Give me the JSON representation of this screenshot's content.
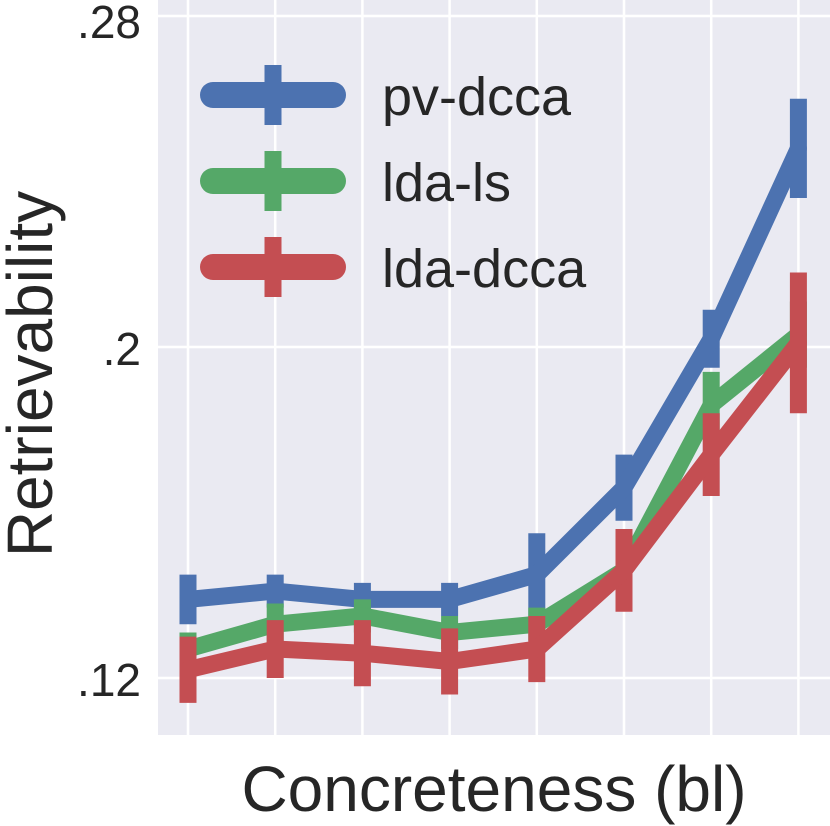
{
  "chart_data": {
    "type": "line",
    "title": "",
    "xlabel": "Concreteness (bl)",
    "ylabel": "Retrievability",
    "x": [
      1,
      2,
      3,
      4,
      5,
      6,
      7,
      8
    ],
    "ylim": [
      0.106,
      0.28
    ],
    "yticks": [
      0.12,
      0.2,
      0.28
    ],
    "ytick_labels": [
      ".12",
      ".2",
      ".28"
    ],
    "grid": true,
    "legend_position": "top-left",
    "series": [
      {
        "name": "pv-dcca",
        "color": "#4c72b0",
        "values": [
          0.139,
          0.141,
          0.139,
          0.139,
          0.145,
          0.166,
          0.202,
          0.248
        ],
        "errors": [
          0.006,
          0.004,
          0.004,
          0.004,
          0.01,
          0.008,
          0.007,
          0.012
        ]
      },
      {
        "name": "lda-ls",
        "color": "#55a868",
        "values": [
          0.127,
          0.133,
          0.135,
          0.131,
          0.133,
          0.146,
          0.186,
          0.203
        ],
        "errors": [
          0.004,
          0.005,
          0.004,
          0.004,
          0.004,
          0.006,
          0.008,
          0.008
        ]
      },
      {
        "name": "lda-dcca",
        "color": "#c44e52",
        "values": [
          0.122,
          0.127,
          0.126,
          0.124,
          0.127,
          0.146,
          0.174,
          0.201
        ],
        "errors": [
          0.008,
          0.007,
          0.008,
          0.008,
          0.008,
          0.01,
          0.01,
          0.017
        ]
      }
    ]
  }
}
